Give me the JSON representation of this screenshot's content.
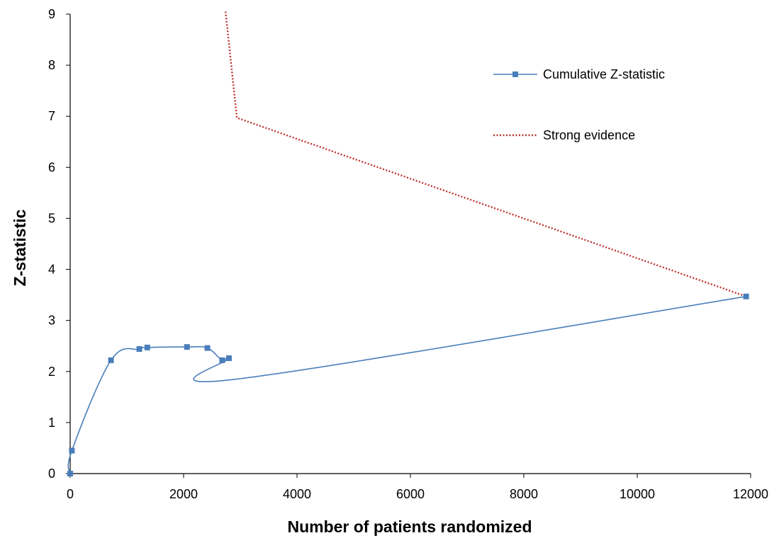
{
  "chart_data": {
    "type": "line",
    "title": "",
    "xlabel": "Number of patients randomized",
    "ylabel": "Z-statistic",
    "xlim": [
      0,
      12000
    ],
    "ylim": [
      0,
      9
    ],
    "xticks": [
      0,
      2000,
      4000,
      6000,
      8000,
      10000,
      12000
    ],
    "yticks": [
      0,
      1,
      2,
      3,
      4,
      5,
      6,
      7,
      8,
      9
    ],
    "grid": false,
    "legend_position": "top-right",
    "series": [
      {
        "name": "Cumulative Z-statistic",
        "color": "#4a7ebb",
        "style": "solid",
        "marker": "square",
        "smooth": true,
        "points": [
          {
            "x": 0,
            "y": 0
          },
          {
            "x": 30,
            "y": 0.45
          },
          {
            "x": 720,
            "y": 2.22
          },
          {
            "x": 1220,
            "y": 2.44
          },
          {
            "x": 1360,
            "y": 2.47
          },
          {
            "x": 2060,
            "y": 2.48
          },
          {
            "x": 2420,
            "y": 2.46
          },
          {
            "x": 2680,
            "y": 2.22
          },
          {
            "x": 2800,
            "y": 2.26
          },
          {
            "x": 2930,
            "y": 1.85,
            "marker": false
          },
          {
            "x": 11920,
            "y": 3.47
          }
        ]
      },
      {
        "name": "Strong evidence",
        "color": "#c0302e",
        "style": "dotted",
        "marker": "none",
        "points": [
          {
            "x": 2740,
            "y": 9.05
          },
          {
            "x": 2940,
            "y": 6.97
          },
          {
            "x": 11920,
            "y": 3.47
          }
        ]
      }
    ]
  }
}
